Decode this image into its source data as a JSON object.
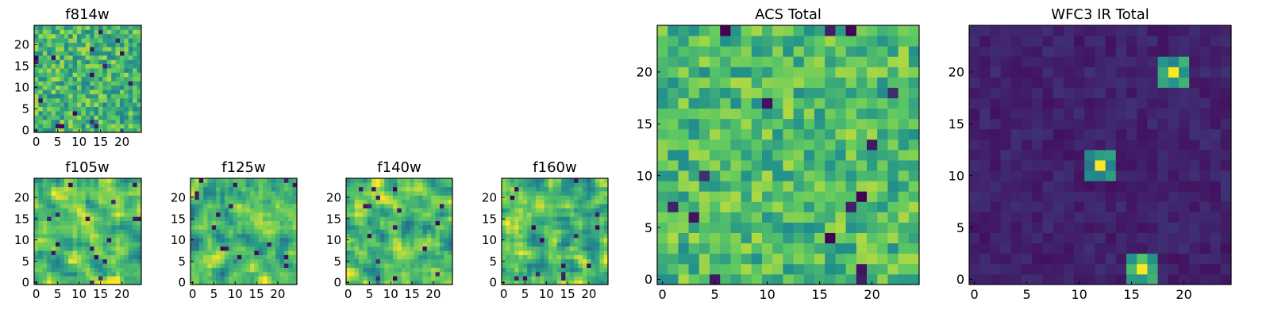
{
  "colors": {
    "viridis": [
      "#440154",
      "#3b528b",
      "#21918c",
      "#5ec962",
      "#fde725"
    ],
    "frame": "#000000",
    "background": "#ffffff"
  },
  "chart_data": [
    {
      "id": "f814w",
      "type": "heatmap",
      "title": "f814w",
      "cmap": "viridis",
      "grid_size": 25,
      "xlim": [
        0,
        24
      ],
      "ylim": [
        0,
        24
      ],
      "xticks": [
        0,
        5,
        10,
        15,
        20
      ],
      "yticks": [
        0,
        5,
        10,
        15,
        20
      ],
      "pattern": "noise",
      "mean": 0.66,
      "spread": 0.22,
      "seed": 814,
      "features": []
    },
    {
      "id": "f105w",
      "type": "heatmap",
      "title": "f105w",
      "cmap": "viridis",
      "grid_size": 25,
      "xlim": [
        0,
        24
      ],
      "ylim": [
        0,
        24
      ],
      "xticks": [
        0,
        5,
        10,
        15,
        20
      ],
      "yticks": [
        0,
        5,
        10,
        15,
        20
      ],
      "pattern": "smooth",
      "mean": 0.7,
      "spread": 0.26,
      "seed": 105,
      "features": []
    },
    {
      "id": "f125w",
      "type": "heatmap",
      "title": "f125w",
      "cmap": "viridis",
      "grid_size": 25,
      "xlim": [
        0,
        24
      ],
      "ylim": [
        0,
        24
      ],
      "xticks": [
        0,
        5,
        10,
        15,
        20
      ],
      "yticks": [
        0,
        5,
        10,
        15,
        20
      ],
      "pattern": "smooth",
      "mean": 0.68,
      "spread": 0.26,
      "seed": 125,
      "features": []
    },
    {
      "id": "f140w",
      "type": "heatmap",
      "title": "f140w",
      "cmap": "viridis",
      "grid_size": 25,
      "xlim": [
        0,
        24
      ],
      "ylim": [
        0,
        24
      ],
      "xticks": [
        0,
        5,
        10,
        15,
        20
      ],
      "yticks": [
        0,
        5,
        10,
        15,
        20
      ],
      "pattern": "smooth",
      "mean": 0.7,
      "spread": 0.27,
      "seed": 140,
      "features": []
    },
    {
      "id": "f160w",
      "type": "heatmap",
      "title": "f160w",
      "cmap": "viridis",
      "grid_size": 25,
      "xlim": [
        0,
        24
      ],
      "ylim": [
        0,
        24
      ],
      "xticks": [
        0,
        5,
        10,
        15,
        20
      ],
      "yticks": [
        0,
        5,
        10,
        15,
        20
      ],
      "pattern": "smooth",
      "mean": 0.68,
      "spread": 0.28,
      "seed": 160,
      "features": []
    },
    {
      "id": "acs_total",
      "type": "heatmap",
      "title": "ACS Total",
      "cmap": "viridis",
      "grid_size": 25,
      "block_size": 1,
      "xlim": [
        0,
        24
      ],
      "ylim": [
        0,
        24
      ],
      "xticks": [
        0,
        5,
        10,
        15,
        20
      ],
      "yticks": [
        0,
        5,
        10,
        15,
        20
      ],
      "pattern": "noise",
      "mean": 0.68,
      "spread": 0.2,
      "seed": 7,
      "features": []
    },
    {
      "id": "wfc3_ir_total",
      "type": "heatmap",
      "title": "WFC3 IR Total",
      "cmap": "viridis",
      "grid_size": 25,
      "block_size": 1,
      "xlim": [
        0,
        24
      ],
      "ylim": [
        0,
        24
      ],
      "xticks": [
        0,
        5,
        10,
        15,
        20
      ],
      "yticks": [
        0,
        5,
        10,
        15,
        20
      ],
      "pattern": "noise",
      "mean": 0.1,
      "spread": 0.05,
      "seed": 21,
      "features": [
        {
          "x": 19.5,
          "y": 20.5,
          "size": 2,
          "value": 1.0,
          "halo": 0.55
        },
        {
          "x": 12.5,
          "y": 11.5,
          "size": 2,
          "value": 1.0,
          "halo": 0.5
        },
        {
          "x": 16.5,
          "y": 1.5,
          "size": 2,
          "value": 1.0,
          "halo": 0.6
        }
      ]
    }
  ]
}
